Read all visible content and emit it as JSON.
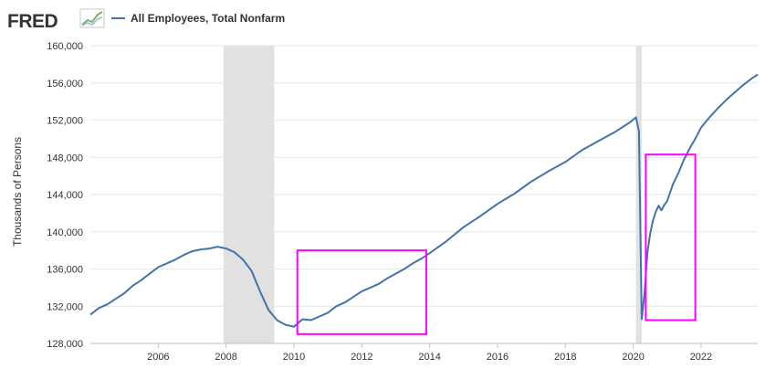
{
  "header": {
    "logo_text": "FRED",
    "legend_label": "All Employees, Total Nonfarm"
  },
  "colors": {
    "series": "#4572a7",
    "recession": "#e1e1e1",
    "grid": "#e6e6e6",
    "annotation": "#ff00ff"
  },
  "chart_data": {
    "type": "line",
    "title": "",
    "xlabel": "",
    "ylabel": "Thousands of Persons",
    "xlim": [
      2004.0,
      2023.67
    ],
    "ylim": [
      128000,
      160000
    ],
    "x_ticks": [
      2006,
      2008,
      2010,
      2012,
      2014,
      2016,
      2018,
      2020,
      2022
    ],
    "y_ticks": [
      128000,
      132000,
      136000,
      140000,
      144000,
      148000,
      152000,
      156000,
      160000
    ],
    "y_tick_labels": [
      "128,000",
      "132,000",
      "136,000",
      "140,000",
      "144,000",
      "148,000",
      "152,000",
      "156,000",
      "160,000"
    ],
    "grid": "horizontal",
    "legend_position": "top-left",
    "recessions": [
      [
        2007.92,
        2009.42
      ],
      [
        2020.08,
        2020.25
      ]
    ],
    "annotations": [
      {
        "type": "rectangle",
        "x": [
          2010.1,
          2013.9
        ],
        "y": [
          129000,
          138000
        ]
      },
      {
        "type": "rectangle",
        "x": [
          2020.37,
          2021.83
        ],
        "y": [
          130500,
          148300
        ]
      }
    ],
    "series": [
      {
        "name": "All Employees, Total Nonfarm",
        "x": [
          2004.0,
          2004.25,
          2004.5,
          2004.75,
          2005.0,
          2005.25,
          2005.5,
          2005.75,
          2006.0,
          2006.25,
          2006.5,
          2006.75,
          2007.0,
          2007.25,
          2007.5,
          2007.75,
          2008.0,
          2008.25,
          2008.5,
          2008.75,
          2009.0,
          2009.25,
          2009.5,
          2009.75,
          2010.0,
          2010.25,
          2010.5,
          2010.75,
          2011.0,
          2011.25,
          2011.5,
          2011.75,
          2012.0,
          2012.25,
          2012.5,
          2012.75,
          2013.0,
          2013.25,
          2013.5,
          2013.75,
          2014.0,
          2014.5,
          2015.0,
          2015.5,
          2016.0,
          2016.5,
          2017.0,
          2017.5,
          2018.0,
          2018.5,
          2019.0,
          2019.5,
          2019.92,
          2020.08,
          2020.17,
          2020.25,
          2020.33,
          2020.42,
          2020.5,
          2020.58,
          2020.67,
          2020.75,
          2020.83,
          2020.92,
          2021.0,
          2021.17,
          2021.33,
          2021.5,
          2021.67,
          2021.83,
          2022.0,
          2022.25,
          2022.5,
          2022.75,
          2023.0,
          2023.25,
          2023.5,
          2023.67
        ],
        "values": [
          131100,
          131800,
          132200,
          132800,
          133400,
          134200,
          134800,
          135500,
          136200,
          136600,
          137000,
          137500,
          137900,
          138100,
          138200,
          138400,
          138200,
          137800,
          137000,
          135800,
          133600,
          131600,
          130500,
          130000,
          129800,
          130600,
          130500,
          130900,
          131300,
          132000,
          132400,
          133000,
          133600,
          134000,
          134400,
          135000,
          135500,
          136000,
          136600,
          137100,
          137700,
          139000,
          140500,
          141700,
          143000,
          144100,
          145400,
          146500,
          147500,
          148800,
          149800,
          150800,
          151800,
          152300,
          150800,
          130600,
          133300,
          137800,
          139800,
          141200,
          142200,
          142800,
          142300,
          142900,
          143300,
          145100,
          146300,
          147800,
          149000,
          150000,
          151200,
          152300,
          153300,
          154200,
          155000,
          155800,
          156500,
          156900
        ]
      }
    ]
  }
}
